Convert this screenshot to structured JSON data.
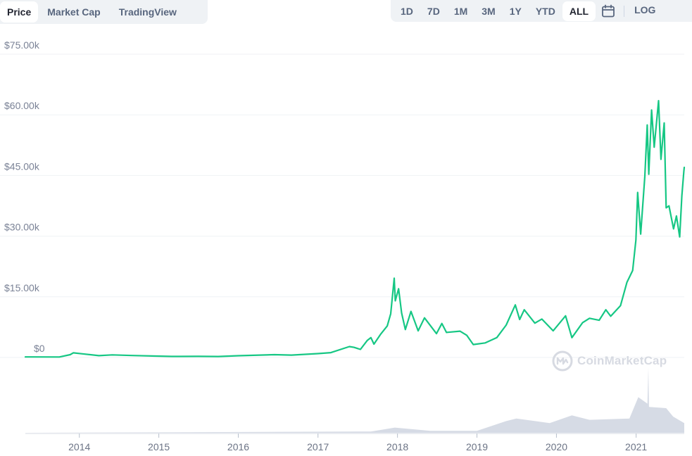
{
  "tabs": [
    {
      "label": "Price",
      "active": true
    },
    {
      "label": "Market Cap",
      "active": false
    },
    {
      "label": "TradingView",
      "active": false
    }
  ],
  "ranges": [
    {
      "label": "1D",
      "active": false
    },
    {
      "label": "7D",
      "active": false
    },
    {
      "label": "1M",
      "active": false
    },
    {
      "label": "3M",
      "active": false
    },
    {
      "label": "1Y",
      "active": false
    },
    {
      "label": "YTD",
      "active": false
    },
    {
      "label": "ALL",
      "active": true
    }
  ],
  "calendar_icon": "calendar-icon",
  "log_label": "LOG",
  "watermark": "CoinMarketCap",
  "colors": {
    "line": "#16c784",
    "volume": "#c8cfdc",
    "grid": "#eff2f5",
    "axis_text": "#7a8296"
  },
  "chart_data": {
    "type": "line",
    "title": "",
    "xlabel": "",
    "ylabel": "",
    "x_ticks": [
      "2014",
      "2015",
      "2016",
      "2017",
      "2018",
      "2019",
      "2020",
      "2021"
    ],
    "y_ticks": [
      "$0",
      "$15.00k",
      "$30.00k",
      "$45.00k",
      "$60.00k",
      "$75.00k"
    ],
    "ylim": [
      0,
      75000
    ],
    "grid": true,
    "series": [
      {
        "name": "",
        "points": [
          [
            "2013-04-28",
            135
          ],
          [
            "2013-10-01",
            130
          ],
          [
            "2013-11-20",
            700
          ],
          [
            "2013-12-04",
            1150
          ],
          [
            "2014-01-15",
            900
          ],
          [
            "2014-04-01",
            450
          ],
          [
            "2014-06-01",
            650
          ],
          [
            "2014-09-01",
            480
          ],
          [
            "2014-12-01",
            370
          ],
          [
            "2015-03-01",
            260
          ],
          [
            "2015-07-01",
            280
          ],
          [
            "2015-10-01",
            240
          ],
          [
            "2016-01-01",
            430
          ],
          [
            "2016-06-15",
            700
          ],
          [
            "2016-09-01",
            600
          ],
          [
            "2016-12-31",
            960
          ],
          [
            "2017-03-01",
            1200
          ],
          [
            "2017-05-25",
            2700
          ],
          [
            "2017-06-15",
            2500
          ],
          [
            "2017-07-15",
            2000
          ],
          [
            "2017-08-15",
            4200
          ],
          [
            "2017-09-01",
            4900
          ],
          [
            "2017-09-15",
            3300
          ],
          [
            "2017-10-15",
            5700
          ],
          [
            "2017-11-15",
            7800
          ],
          [
            "2017-12-01",
            10800
          ],
          [
            "2017-12-17",
            19600
          ],
          [
            "2017-12-22",
            14000
          ],
          [
            "2018-01-06",
            17000
          ],
          [
            "2018-01-20",
            11000
          ],
          [
            "2018-02-06",
            6900
          ],
          [
            "2018-03-04",
            11400
          ],
          [
            "2018-04-06",
            6600
          ],
          [
            "2018-05-05",
            9800
          ],
          [
            "2018-06-29",
            5900
          ],
          [
            "2018-07-24",
            8400
          ],
          [
            "2018-08-14",
            6200
          ],
          [
            "2018-10-15",
            6500
          ],
          [
            "2018-11-15",
            5500
          ],
          [
            "2018-12-15",
            3200
          ],
          [
            "2019-02-08",
            3600
          ],
          [
            "2019-04-02",
            4900
          ],
          [
            "2019-05-15",
            8000
          ],
          [
            "2019-06-26",
            13000
          ],
          [
            "2019-07-16",
            9400
          ],
          [
            "2019-08-06",
            11800
          ],
          [
            "2019-09-24",
            8500
          ],
          [
            "2019-10-26",
            9500
          ],
          [
            "2019-12-17",
            6600
          ],
          [
            "2020-02-12",
            10300
          ],
          [
            "2020-03-12",
            4900
          ],
          [
            "2020-04-30",
            8600
          ],
          [
            "2020-06-01",
            9700
          ],
          [
            "2020-07-15",
            9200
          ],
          [
            "2020-08-15",
            11800
          ],
          [
            "2020-09-06",
            10200
          ],
          [
            "2020-10-21",
            12800
          ],
          [
            "2020-11-20",
            18600
          ],
          [
            "2020-12-16",
            21500
          ],
          [
            "2020-12-31",
            29000
          ],
          [
            "2021-01-08",
            40800
          ],
          [
            "2021-01-22",
            30500
          ],
          [
            "2021-02-10",
            44800
          ],
          [
            "2021-02-21",
            57500
          ],
          [
            "2021-02-28",
            45300
          ],
          [
            "2021-03-13",
            61200
          ],
          [
            "2021-03-25",
            52000
          ],
          [
            "2021-04-14",
            63500
          ],
          [
            "2021-04-25",
            49000
          ],
          [
            "2021-05-10",
            58000
          ],
          [
            "2021-05-19",
            37000
          ],
          [
            "2021-06-01",
            37500
          ],
          [
            "2021-06-22",
            31800
          ],
          [
            "2021-07-05",
            35000
          ],
          [
            "2021-07-20",
            29800
          ],
          [
            "2021-07-30",
            40000
          ],
          [
            "2021-08-08",
            46000
          ],
          [
            "2021-08-10",
            47000
          ]
        ]
      }
    ],
    "volume_series": {
      "name": "",
      "points": [
        [
          "2013-04-28",
          0
        ],
        [
          "2017-09-01",
          0.02
        ],
        [
          "2017-12-20",
          0.08
        ],
        [
          "2018-06-01",
          0.03
        ],
        [
          "2019-01-01",
          0.03
        ],
        [
          "2019-05-15",
          0.18
        ],
        [
          "2019-07-01",
          0.22
        ],
        [
          "2019-12-01",
          0.15
        ],
        [
          "2020-03-12",
          0.27
        ],
        [
          "2020-06-01",
          0.2
        ],
        [
          "2020-12-01",
          0.22
        ],
        [
          "2021-01-11",
          0.55
        ],
        [
          "2021-02-22",
          0.45
        ],
        [
          "2021-02-26",
          1.0
        ],
        [
          "2021-03-01",
          0.4
        ],
        [
          "2021-05-19",
          0.38
        ],
        [
          "2021-06-20",
          0.25
        ],
        [
          "2021-08-10",
          0.15
        ]
      ]
    }
  }
}
